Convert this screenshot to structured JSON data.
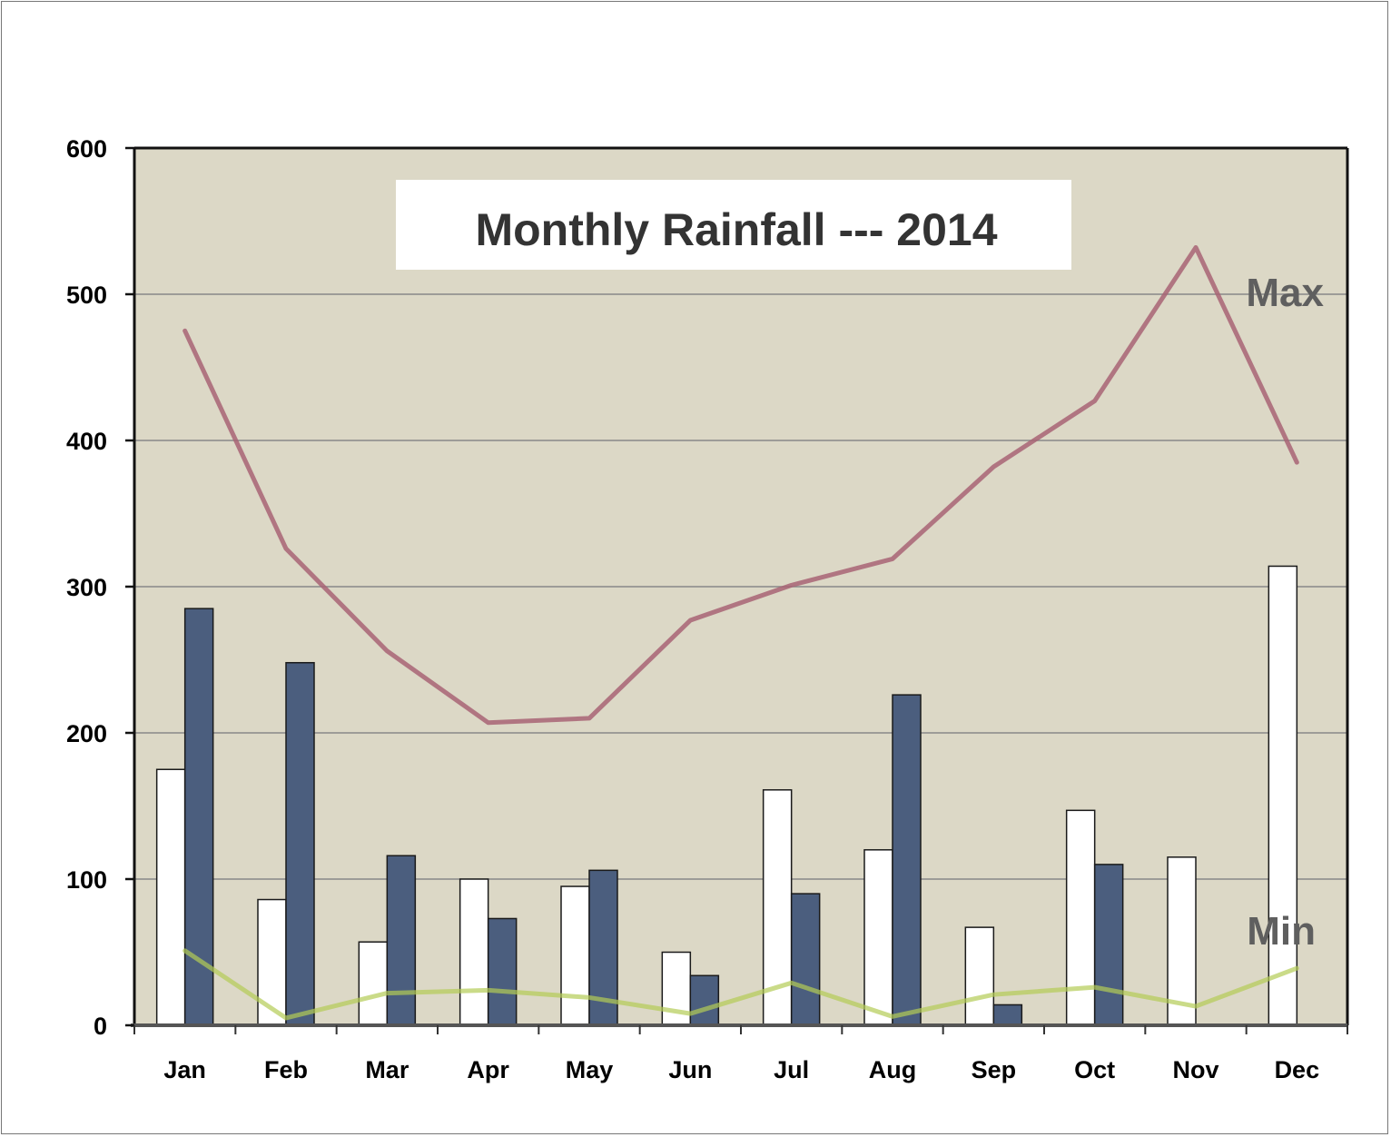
{
  "chart_data": {
    "type": "bar",
    "title": "Monthly Rainfall --- 2014",
    "xlabel": "",
    "ylabel": "",
    "ylim": [
      0,
      600
    ],
    "yticks": [
      0,
      100,
      200,
      300,
      400,
      500,
      600
    ],
    "grid": true,
    "categories": [
      "Jan",
      "Feb",
      "Mar",
      "Apr",
      "May",
      "Jun",
      "Jul",
      "Aug",
      "Sep",
      "Oct",
      "Nov",
      "Dec"
    ],
    "series": [
      {
        "type": "bar",
        "color": "#ffffff",
        "values": [
          175,
          86,
          57,
          100,
          95,
          50,
          161,
          120,
          67,
          147,
          115,
          314
        ]
      },
      {
        "type": "bar",
        "color": "#4b5e7e",
        "values": [
          285,
          248,
          116,
          73,
          106,
          34,
          90,
          226,
          14,
          110,
          0,
          0
        ]
      },
      {
        "type": "line",
        "name": "Max",
        "color": "#a86474",
        "values": [
          475,
          326,
          256,
          207,
          210,
          277,
          301,
          319,
          382,
          427,
          532,
          385
        ]
      },
      {
        "type": "line",
        "name": "Min",
        "color": "#b3cc55",
        "values": [
          51,
          5,
          22,
          24,
          19,
          8,
          29,
          6,
          21,
          26,
          13,
          39
        ]
      }
    ],
    "annotations": [
      "Max",
      "Min"
    ]
  }
}
